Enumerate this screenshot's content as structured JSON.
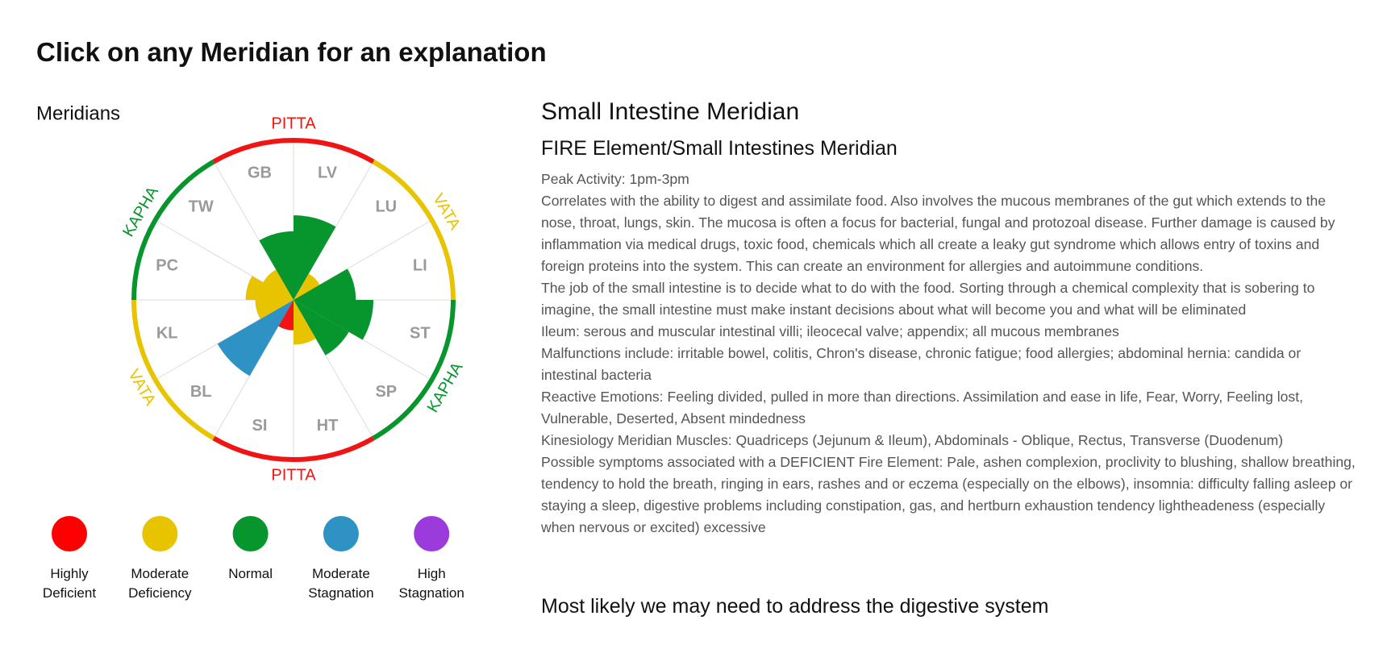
{
  "page_title": "Click on any Meridian for an explanation",
  "chart_data": {
    "type": "rose",
    "title": "Meridians",
    "categories": [
      "LV",
      "LU",
      "LI",
      "ST",
      "SP",
      "HT",
      "SI",
      "BL",
      "KL",
      "PC",
      "TW",
      "GB"
    ],
    "values": [
      5.3,
      1.9,
      3.9,
      5,
      4,
      2.8,
      1.9,
      5.5,
      2.4,
      3,
      2.2,
      4.3
    ],
    "colors": [
      "#07962e",
      "#e8c300",
      "#07962e",
      "#07962e",
      "#07962e",
      "#e8c300",
      "#f01414",
      "#2e93c4",
      "#e8c300",
      "#e8c300",
      "#e8c300",
      "#07962e"
    ],
    "rlim": [
      0,
      10
    ],
    "ring": [
      {
        "label": "PITTA",
        "color": "#f01414"
      },
      {
        "label": "VATA",
        "color": "#e8c300"
      },
      {
        "label": "KAPHA",
        "color": "#07962e"
      },
      {
        "label": "PITTA",
        "color": "#f01414"
      },
      {
        "label": "VATA",
        "color": "#e8c300"
      },
      {
        "label": "KAPHA",
        "color": "#07962e"
      }
    ],
    "legend": [
      {
        "label": "Highly Deficient",
        "color": "#ff0000"
      },
      {
        "label": "Moderate Deficiency",
        "color": "#e8c300"
      },
      {
        "label": "Normal",
        "color": "#07962e"
      },
      {
        "label": "Moderate Stagnation",
        "color": "#2e93c4"
      },
      {
        "label": "High Stagnation",
        "color": "#9b3bdc"
      }
    ]
  },
  "detail": {
    "title": "Small Intestine Meridian",
    "subtitle": "FIRE Element/Small Intestines Meridian",
    "paragraphs": [
      "Peak Activity: 1pm-3pm",
      "Correlates with the ability to digest and assimilate food. Also involves the mucous membranes of the gut which extends to the nose, throat, lungs, skin. The mucosa is often a focus for bacterial, fungal and protozoal disease. Further damage is caused by inflammation via medical drugs, toxic food, chemicals which all create a leaky gut syndrome which allows entry of toxins and foreign proteins into the system. This can create an environment for allergies and autoimmune conditions.",
      "The job of the small intestine is to decide what to do with the food. Sorting through a chemical complexity that is sobering to imagine, the small intestine must make instant decisions about what will become you and what will be eliminated",
      "Ileum: serous and muscular intestinal villi; ileocecal valve; appendix; all mucous membranes",
      "Malfunctions include: irritable bowel, colitis, Chron's disease, chronic fatigue; food allergies; abdominal hernia: candida or intestinal bacteria",
      "Reactive Emotions: Feeling divided, pulled in more than directions. Assimilation and ease in life, Fear, Worry, Feeling lost, Vulnerable, Deserted, Absent mindedness",
      "Kinesiology Meridian Muscles: Quadriceps (Jejunum & Ileum), Abdominals - Oblique, Rectus, Transverse (Duodenum)",
      "Possible symptoms associated with a DEFICIENT Fire Element: Pale, ashen complexion, proclivity to blushing, shallow breathing, tendency to hold the breath, ringing in ears, rashes and or eczema (especially on the elbows), insomnia: difficulty falling asleep or staying a sleep, digestive problems including constipation, gas, and hertburn exhaustion tendency lightheadeness (especially when nervous or excited) excessive"
    ],
    "conclusion": "Most likely we may need to address the digestive system"
  }
}
